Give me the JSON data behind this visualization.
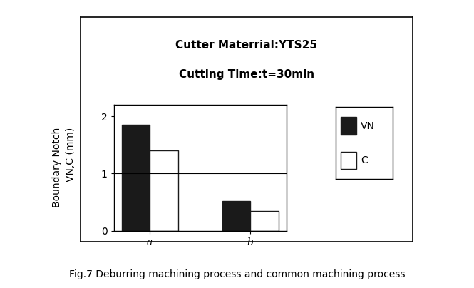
{
  "title_line1": "Cutter Materrial:YTS25",
  "title_line2": "Cutting Time:t=30min",
  "categories": [
    "a",
    "b"
  ],
  "vn_values": [
    1.85,
    0.52
  ],
  "c_values": [
    1.4,
    0.35
  ],
  "ylabel_line1": "Boundary Notch",
  "ylabel_line2": "VN,C (mm)",
  "ylim": [
    0,
    2.2
  ],
  "yticks": [
    0,
    1,
    2
  ],
  "bar_width": 0.28,
  "vn_color": "#1a1a1a",
  "c_color": "#ffffff",
  "legend_vn": "VN",
  "legend_c": "C",
  "caption": "Fig.7 Deburring machining process and common machining process",
  "title_fontsize": 11,
  "axis_fontsize": 10,
  "tick_fontsize": 10,
  "caption_fontsize": 10,
  "bar_edge_color": "#1a1a1a",
  "hline_y": 1.0
}
